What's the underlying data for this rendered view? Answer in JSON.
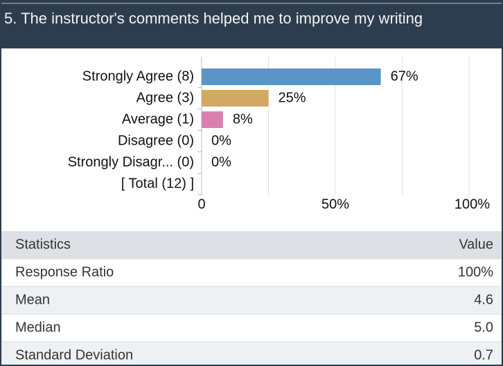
{
  "chart_data": {
    "type": "bar",
    "orientation": "horizontal",
    "title": "5. The instructor's comments helped me to improve my writing",
    "categories": [
      "Strongly Agree (8)",
      "Agree (3)",
      "Average (1)",
      "Disagree (0)",
      "Strongly Disagr... (0)",
      "[ Total (12) ]"
    ],
    "values": [
      67,
      25,
      8,
      0,
      0,
      null
    ],
    "value_labels": [
      "67%",
      "25%",
      "8%",
      "0%",
      "0%",
      null
    ],
    "colors": [
      "#5b95c4",
      "#d3a862",
      "#da80b1",
      "#999999",
      "#999999",
      null
    ],
    "xlim": [
      0,
      100
    ],
    "xticks": [
      0,
      {
        "value": 50,
        "label": "50%"
      },
      {
        "value": 100,
        "label": "100%"
      }
    ],
    "grid_xticks": [
      25,
      50,
      75,
      100
    ],
    "grid": true
  },
  "table": {
    "header": [
      "Statistics",
      "Value"
    ],
    "rows": [
      [
        "Response Ratio",
        "100%"
      ],
      [
        "Mean",
        "4.6"
      ],
      [
        "Median",
        "5.0"
      ],
      [
        "Standard Deviation",
        "0.7"
      ]
    ]
  }
}
